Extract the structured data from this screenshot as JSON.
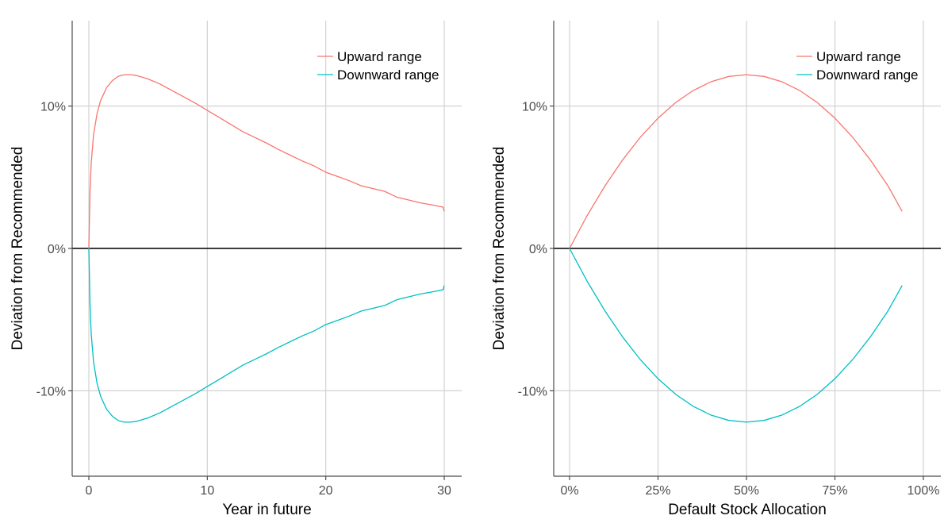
{
  "colors": {
    "upward": "#F8766D",
    "downward": "#00BFC4"
  },
  "chart_data": [
    {
      "type": "line",
      "xlabel": "Year in future",
      "ylabel": "Deviation from Recommended",
      "xlim": [
        0,
        30
      ],
      "ylim": [
        -0.16,
        0.16
      ],
      "x_ticks": [
        0,
        10,
        20,
        30
      ],
      "x_tick_labels": [
        "0",
        "10",
        "20",
        "30"
      ],
      "y_ticks": [
        -0.1,
        0,
        0.1
      ],
      "y_tick_labels": [
        "-10%",
        "0%",
        "10%"
      ],
      "grid": true,
      "legend_position": "top-right",
      "series": [
        {
          "name": "Upward range",
          "x": [
            0,
            0.1,
            0.2,
            0.4,
            0.7,
            1,
            1.5,
            2,
            2.5,
            3,
            3.5,
            4,
            5,
            6,
            7,
            8,
            9,
            10,
            11,
            12,
            13,
            14,
            15,
            16,
            17,
            18,
            19,
            20,
            21,
            22,
            23,
            24,
            25,
            26,
            27,
            28,
            29,
            29.9,
            30
          ],
          "values": [
            0,
            0.04,
            0.06,
            0.08,
            0.095,
            0.104,
            0.113,
            0.118,
            0.121,
            0.122,
            0.122,
            0.1215,
            0.119,
            0.1155,
            0.111,
            0.1065,
            0.102,
            0.097,
            0.092,
            0.087,
            0.082,
            0.078,
            0.074,
            0.0695,
            0.0655,
            0.0615,
            0.058,
            0.0535,
            0.0505,
            0.0475,
            0.044,
            0.042,
            0.04,
            0.036,
            0.034,
            0.032,
            0.0305,
            0.029,
            0.026
          ]
        },
        {
          "name": "Downward range",
          "x": [
            0,
            0.1,
            0.2,
            0.4,
            0.7,
            1,
            1.5,
            2,
            2.5,
            3,
            3.5,
            4,
            5,
            6,
            7,
            8,
            9,
            10,
            11,
            12,
            13,
            14,
            15,
            16,
            17,
            18,
            19,
            20,
            21,
            22,
            23,
            24,
            25,
            26,
            27,
            28,
            29,
            29.9,
            30
          ],
          "values": [
            0,
            -0.04,
            -0.06,
            -0.08,
            -0.095,
            -0.104,
            -0.113,
            -0.118,
            -0.121,
            -0.122,
            -0.122,
            -0.1215,
            -0.119,
            -0.1155,
            -0.111,
            -0.1065,
            -0.102,
            -0.097,
            -0.092,
            -0.087,
            -0.082,
            -0.078,
            -0.074,
            -0.0695,
            -0.0655,
            -0.0615,
            -0.058,
            -0.0535,
            -0.0505,
            -0.0475,
            -0.044,
            -0.042,
            -0.04,
            -0.036,
            -0.034,
            -0.032,
            -0.0305,
            -0.029,
            -0.026
          ]
        }
      ]
    },
    {
      "type": "line",
      "xlabel": "Default Stock Allocation",
      "ylabel": "Deviation from Recommended",
      "xlim": [
        0,
        1
      ],
      "ylim": [
        -0.16,
        0.16
      ],
      "x_ticks": [
        0,
        0.25,
        0.5,
        0.75,
        1
      ],
      "x_tick_labels": [
        "0%",
        "25%",
        "50%",
        "75%",
        "100%"
      ],
      "y_ticks": [
        -0.1,
        0,
        0.1
      ],
      "y_tick_labels": [
        "-10%",
        "0%",
        "10%"
      ],
      "grid": true,
      "legend_position": "top-right",
      "series": [
        {
          "name": "Upward range",
          "x": [
            0,
            0.05,
            0.1,
            0.15,
            0.2,
            0.25,
            0.3,
            0.35,
            0.4,
            0.45,
            0.5,
            0.55,
            0.6,
            0.65,
            0.7,
            0.75,
            0.8,
            0.85,
            0.9,
            0.94
          ],
          "values": [
            0,
            0.0232,
            0.0439,
            0.0622,
            0.0781,
            0.0915,
            0.1025,
            0.111,
            0.1171,
            0.1208,
            0.122,
            0.1208,
            0.1171,
            0.111,
            0.1025,
            0.0915,
            0.0781,
            0.0622,
            0.0439,
            0.026
          ]
        },
        {
          "name": "Downward range",
          "x": [
            0,
            0.05,
            0.1,
            0.15,
            0.2,
            0.25,
            0.3,
            0.35,
            0.4,
            0.45,
            0.5,
            0.55,
            0.6,
            0.65,
            0.7,
            0.75,
            0.8,
            0.85,
            0.9,
            0.94
          ],
          "values": [
            0,
            -0.0232,
            -0.0439,
            -0.0622,
            -0.0781,
            -0.0915,
            -0.1025,
            -0.111,
            -0.1171,
            -0.1208,
            -0.122,
            -0.1208,
            -0.1171,
            -0.111,
            -0.1025,
            -0.0915,
            -0.0781,
            -0.0622,
            -0.0439,
            -0.026
          ]
        }
      ]
    }
  ]
}
